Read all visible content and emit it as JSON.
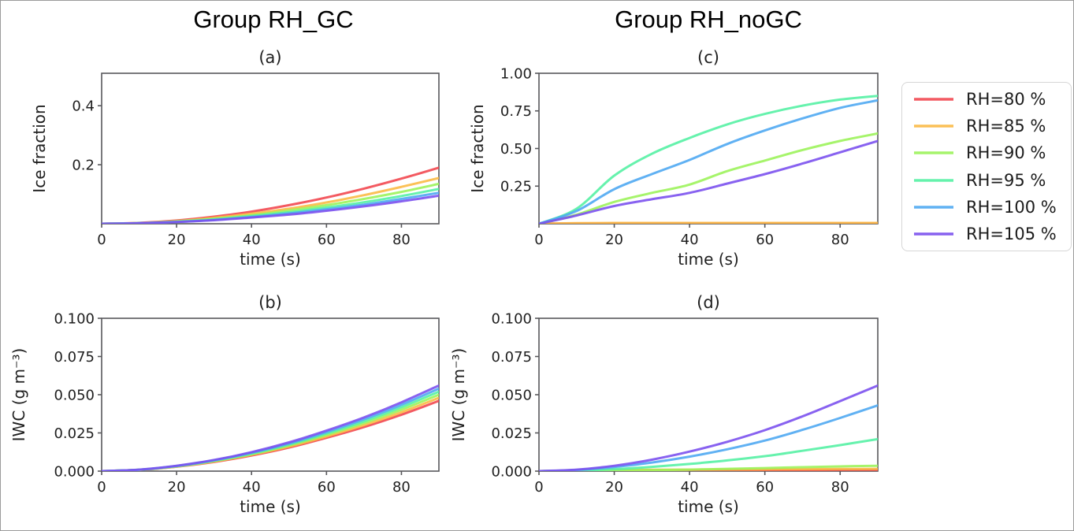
{
  "figure": {
    "group_titles": [
      "Group RH_GC",
      "Group RH_noGC"
    ]
  },
  "legend": {
    "items": [
      {
        "label": "RH=80 %",
        "color": "#f24850"
      },
      {
        "label": "RH=85 %",
        "color": "#fbba45"
      },
      {
        "label": "RH=90 %",
        "color": "#9cf35b"
      },
      {
        "label": "RH=95 %",
        "color": "#55f1a4"
      },
      {
        "label": "RH=100 %",
        "color": "#4fa9f2"
      },
      {
        "label": "RH=105 %",
        "color": "#7b51ee"
      }
    ]
  },
  "chart_data": [
    {
      "id": "a",
      "type": "line",
      "title": "(a)",
      "xlabel": "time (s)",
      "ylabel": "Ice fraction",
      "xlim": [
        0,
        90
      ],
      "ylim": [
        0,
        0.51
      ],
      "xticks": [
        0,
        20,
        40,
        60,
        80
      ],
      "yticks": [
        {
          "v": 0.2,
          "label": "0.2"
        },
        {
          "v": 0.4,
          "label": "0.4"
        }
      ],
      "grid": false,
      "x": [
        0,
        10,
        20,
        30,
        40,
        50,
        60,
        70,
        80,
        90
      ],
      "series": [
        {
          "name": "RH=80 %",
          "color": "#f24850",
          "values": [
            0,
            0.003,
            0.011,
            0.024,
            0.041,
            0.063,
            0.089,
            0.119,
            0.153,
            0.19
          ]
        },
        {
          "name": "RH=85 %",
          "color": "#fbba45",
          "values": [
            0,
            0.0025,
            0.009,
            0.02,
            0.034,
            0.051,
            0.072,
            0.097,
            0.125,
            0.155
          ]
        },
        {
          "name": "RH=90 %",
          "color": "#9cf35b",
          "values": [
            0,
            0.002,
            0.008,
            0.017,
            0.029,
            0.045,
            0.063,
            0.084,
            0.108,
            0.135
          ]
        },
        {
          "name": "RH=95 %",
          "color": "#55f1a4",
          "values": [
            0,
            0.002,
            0.007,
            0.015,
            0.026,
            0.039,
            0.055,
            0.073,
            0.094,
            0.118
          ]
        },
        {
          "name": "RH=100 %",
          "color": "#4fa9f2",
          "values": [
            0,
            0.0018,
            0.006,
            0.013,
            0.023,
            0.035,
            0.049,
            0.065,
            0.084,
            0.105
          ]
        },
        {
          "name": "RH=105 %",
          "color": "#7b51ee",
          "values": [
            0,
            0.0016,
            0.006,
            0.012,
            0.021,
            0.031,
            0.044,
            0.059,
            0.076,
            0.095
          ]
        }
      ]
    },
    {
      "id": "c",
      "type": "line",
      "title": "(c)",
      "xlabel": "time (s)",
      "ylabel": "Ice fraction",
      "xlim": [
        0,
        90
      ],
      "ylim": [
        0,
        1.0
      ],
      "xticks": [
        0,
        20,
        40,
        60,
        80
      ],
      "yticks": [
        {
          "v": 0.25,
          "label": "0.25"
        },
        {
          "v": 0.5,
          "label": "0.50"
        },
        {
          "v": 0.75,
          "label": "0.75"
        },
        {
          "v": 1.0,
          "label": "1.00"
        }
      ],
      "grid": false,
      "x": [
        0,
        10,
        20,
        30,
        40,
        50,
        60,
        70,
        80,
        90
      ],
      "series": [
        {
          "name": "RH=80 %",
          "color": "#f24850",
          "values": [
            0,
            0.002,
            0.002,
            0.002,
            0.002,
            0.002,
            0.002,
            0.002,
            0.002,
            0.002
          ]
        },
        {
          "name": "RH=85 %",
          "color": "#fbba45",
          "values": [
            0,
            0.004,
            0.005,
            0.005,
            0.005,
            0.005,
            0.005,
            0.005,
            0.005,
            0.005
          ]
        },
        {
          "name": "RH=90 %",
          "color": "#9cf35b",
          "values": [
            0,
            0.06,
            0.145,
            0.205,
            0.26,
            0.35,
            0.42,
            0.49,
            0.55,
            0.6
          ]
        },
        {
          "name": "RH=95 %",
          "color": "#55f1a4",
          "values": [
            0,
            0.1,
            0.32,
            0.465,
            0.57,
            0.66,
            0.73,
            0.785,
            0.825,
            0.85
          ]
        },
        {
          "name": "RH=100 %",
          "color": "#4fa9f2",
          "values": [
            0,
            0.085,
            0.23,
            0.33,
            0.424,
            0.53,
            0.62,
            0.7,
            0.77,
            0.82
          ]
        },
        {
          "name": "RH=105 %",
          "color": "#7b51ee",
          "values": [
            0,
            0.055,
            0.118,
            0.163,
            0.205,
            0.267,
            0.33,
            0.4,
            0.475,
            0.55
          ]
        }
      ]
    },
    {
      "id": "b",
      "type": "line",
      "title": "(b)",
      "xlabel": "time (s)",
      "ylabel": "IWC (g m⁻³)",
      "xlim": [
        0,
        90
      ],
      "ylim": [
        0,
        0.1
      ],
      "xticks": [
        0,
        20,
        40,
        60,
        80
      ],
      "yticks": [
        {
          "v": 0.0,
          "label": "0.000"
        },
        {
          "v": 0.025,
          "label": "0.025"
        },
        {
          "v": 0.05,
          "label": "0.050"
        },
        {
          "v": 0.075,
          "label": "0.075"
        },
        {
          "v": 0.1,
          "label": "0.100"
        }
      ],
      "grid": false,
      "x": [
        0,
        10,
        20,
        30,
        40,
        50,
        60,
        70,
        80,
        90
      ],
      "series": [
        {
          "name": "RH=80 %",
          "color": "#f24850",
          "values": [
            0,
            0.0008,
            0.0029,
            0.006,
            0.0102,
            0.0154,
            0.0218,
            0.0288,
            0.0369,
            0.046
          ]
        },
        {
          "name": "RH=85 %",
          "color": "#fbba45",
          "values": [
            0,
            0.0008,
            0.003,
            0.0063,
            0.0107,
            0.0161,
            0.0227,
            0.0301,
            0.0385,
            0.048
          ]
        },
        {
          "name": "RH=90 %",
          "color": "#9cf35b",
          "values": [
            0,
            0.0009,
            0.0031,
            0.0066,
            0.0111,
            0.0168,
            0.0237,
            0.0314,
            0.0402,
            0.05
          ]
        },
        {
          "name": "RH=95 %",
          "color": "#55f1a4",
          "values": [
            0,
            0.0009,
            0.0032,
            0.0068,
            0.0115,
            0.0174,
            0.0246,
            0.0326,
            0.0418,
            0.052
          ]
        },
        {
          "name": "RH=100 %",
          "color": "#4fa9f2",
          "values": [
            0,
            0.0009,
            0.0034,
            0.0071,
            0.012,
            0.0181,
            0.0255,
            0.0339,
            0.0434,
            0.054
          ]
        },
        {
          "name": "RH=105 %",
          "color": "#7b51ee",
          "values": [
            0,
            0.001,
            0.0035,
            0.0073,
            0.0124,
            0.0188,
            0.0265,
            0.0351,
            0.045,
            0.056
          ]
        }
      ]
    },
    {
      "id": "d",
      "type": "line",
      "title": "(d)",
      "xlabel": "time (s)",
      "ylabel": "IWC (g m⁻³)",
      "xlim": [
        0,
        90
      ],
      "ylim": [
        0,
        0.1
      ],
      "xticks": [
        0,
        20,
        40,
        60,
        80
      ],
      "yticks": [
        {
          "v": 0.0,
          "label": "0.000"
        },
        {
          "v": 0.025,
          "label": "0.025"
        },
        {
          "v": 0.05,
          "label": "0.050"
        },
        {
          "v": 0.075,
          "label": "0.075"
        },
        {
          "v": 0.1,
          "label": "0.100"
        }
      ],
      "grid": false,
      "x": [
        0,
        10,
        20,
        30,
        40,
        50,
        60,
        70,
        80,
        90
      ],
      "series": [
        {
          "name": "RH=80 %",
          "color": "#f24850",
          "values": [
            0,
            0.0003,
            0.0005,
            0.0005,
            0.0006,
            0.0006,
            0.0007,
            0.0007,
            0.0008,
            0.0008
          ]
        },
        {
          "name": "RH=85 %",
          "color": "#fbba45",
          "values": [
            0,
            0.0004,
            0.0007,
            0.0009,
            0.001,
            0.0011,
            0.0012,
            0.0013,
            0.0014,
            0.0015
          ]
        },
        {
          "name": "RH=90 %",
          "color": "#9cf35b",
          "values": [
            0,
            0.0001,
            0.0003,
            0.0006,
            0.001,
            0.0015,
            0.002,
            0.0026,
            0.0031,
            0.0035
          ]
        },
        {
          "name": "RH=95 %",
          "color": "#55f1a4",
          "values": [
            0,
            0.0004,
            0.0013,
            0.0028,
            0.0047,
            0.007,
            0.0098,
            0.0133,
            0.017,
            0.021
          ]
        },
        {
          "name": "RH=100 %",
          "color": "#4fa9f2",
          "values": [
            0,
            0.0007,
            0.0027,
            0.0056,
            0.0095,
            0.0143,
            0.02,
            0.027,
            0.0348,
            0.043
          ]
        },
        {
          "name": "RH=105 %",
          "color": "#7b51ee",
          "values": [
            0,
            0.001,
            0.0035,
            0.0075,
            0.0128,
            0.0192,
            0.0268,
            0.0358,
            0.0458,
            0.056
          ]
        }
      ]
    }
  ]
}
